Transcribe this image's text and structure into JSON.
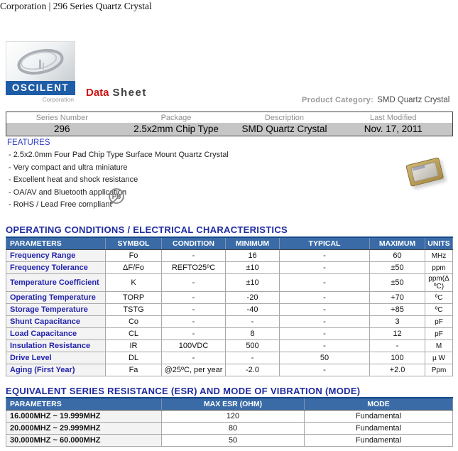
{
  "page": {
    "header_line": "Corporation | 296 Series Quartz Crystal"
  },
  "header": {
    "logo_name": "OSCILENT",
    "logo_subtitle": "Corporation",
    "datasheet_word1": "Data",
    "datasheet_word2": "Sheet",
    "product_category_label": "Product Category:",
    "product_category_value": "SMD Quartz Crystal"
  },
  "info_table": {
    "headers": [
      "Series Number",
      "Package",
      "Description",
      "Last Modified"
    ],
    "values": [
      "296",
      "2.5x2mm Chip Type",
      "SMD Quartz Crystal",
      "Nov. 17, 2011"
    ]
  },
  "features": {
    "title": "FEATURES",
    "items": [
      "- 2.5x2.0mm Four Pad Chip Type Surface Mount Quartz Crystal",
      "- Very compact and ultra miniature",
      "- Excellent heat and shock resistance",
      "- OA/AV and Bluetooth application",
      "- RoHS / Lead Free compliant"
    ],
    "pb_symbol": "Pb"
  },
  "electrical": {
    "title": "OPERATING CONDITIONS / ELECTRICAL CHARACTERISTICS",
    "headers": [
      "PARAMETERS",
      "SYMBOL",
      "CONDITION",
      "MINIMUM",
      "TYPICAL",
      "MAXIMUM",
      "UNITS"
    ],
    "rows": [
      [
        "Frequency Range",
        "Fo",
        "-",
        "16",
        "-",
        "60",
        "MHz"
      ],
      [
        "Frequency Tolerance",
        "ΔF/Fo",
        "REFTO25ºC",
        "±10",
        "-",
        "±50",
        "ppm"
      ],
      [
        "Temperature Coefficient",
        "K",
        "-",
        "±10",
        "-",
        "±50",
        "ppm(Δ ºC)"
      ],
      [
        "Operating Temperature",
        "TORP",
        "-",
        "-20",
        "-",
        "+70",
        "ºC"
      ],
      [
        "Storage Temperature",
        "TSTG",
        "-",
        "-40",
        "-",
        "+85",
        "ºC"
      ],
      [
        "Shunt Capacitance",
        "Co",
        "-",
        "-",
        "-",
        "3",
        "pF"
      ],
      [
        "Load Capacitance",
        "CL",
        "-",
        "8",
        "-",
        "12",
        "pF"
      ],
      [
        "Insulation Resistance",
        "IR",
        "100VDC",
        "500",
        "-",
        "-",
        "M"
      ],
      [
        "Drive Level",
        "DL",
        "-",
        "-",
        "50",
        "100",
        "µ W"
      ],
      [
        "Aging (First Year)",
        "Fa",
        "@25ºC, per year",
        "-2.0",
        "-",
        "+2.0",
        "Ppm"
      ]
    ]
  },
  "esr": {
    "title": "EQUIVALENT SERIES RESISTANCE (ESR) AND MODE OF VIBRATION (MODE)",
    "headers": [
      "PARAMETERS",
      "MAX ESR (OHM)",
      "MODE"
    ],
    "rows": [
      [
        "16.000MHZ ~ 19.999MHZ",
        "120",
        "Fundamental"
      ],
      [
        "20.000MHZ ~ 29.999MHZ",
        "80",
        "Fundamental"
      ],
      [
        "30.000MHZ ~ 60.000MHZ",
        "50",
        "Fundamental"
      ]
    ]
  },
  "colors": {
    "header_bg": "#3A6BA7",
    "heading_navy": "#1E2AA2",
    "param_blue": "#2424AD",
    "features_blue": "#2F3AC1",
    "logo_blue": "#1D5CA6",
    "datasheet_red": "#CC1414",
    "row_silver": "#C6C6C6"
  }
}
